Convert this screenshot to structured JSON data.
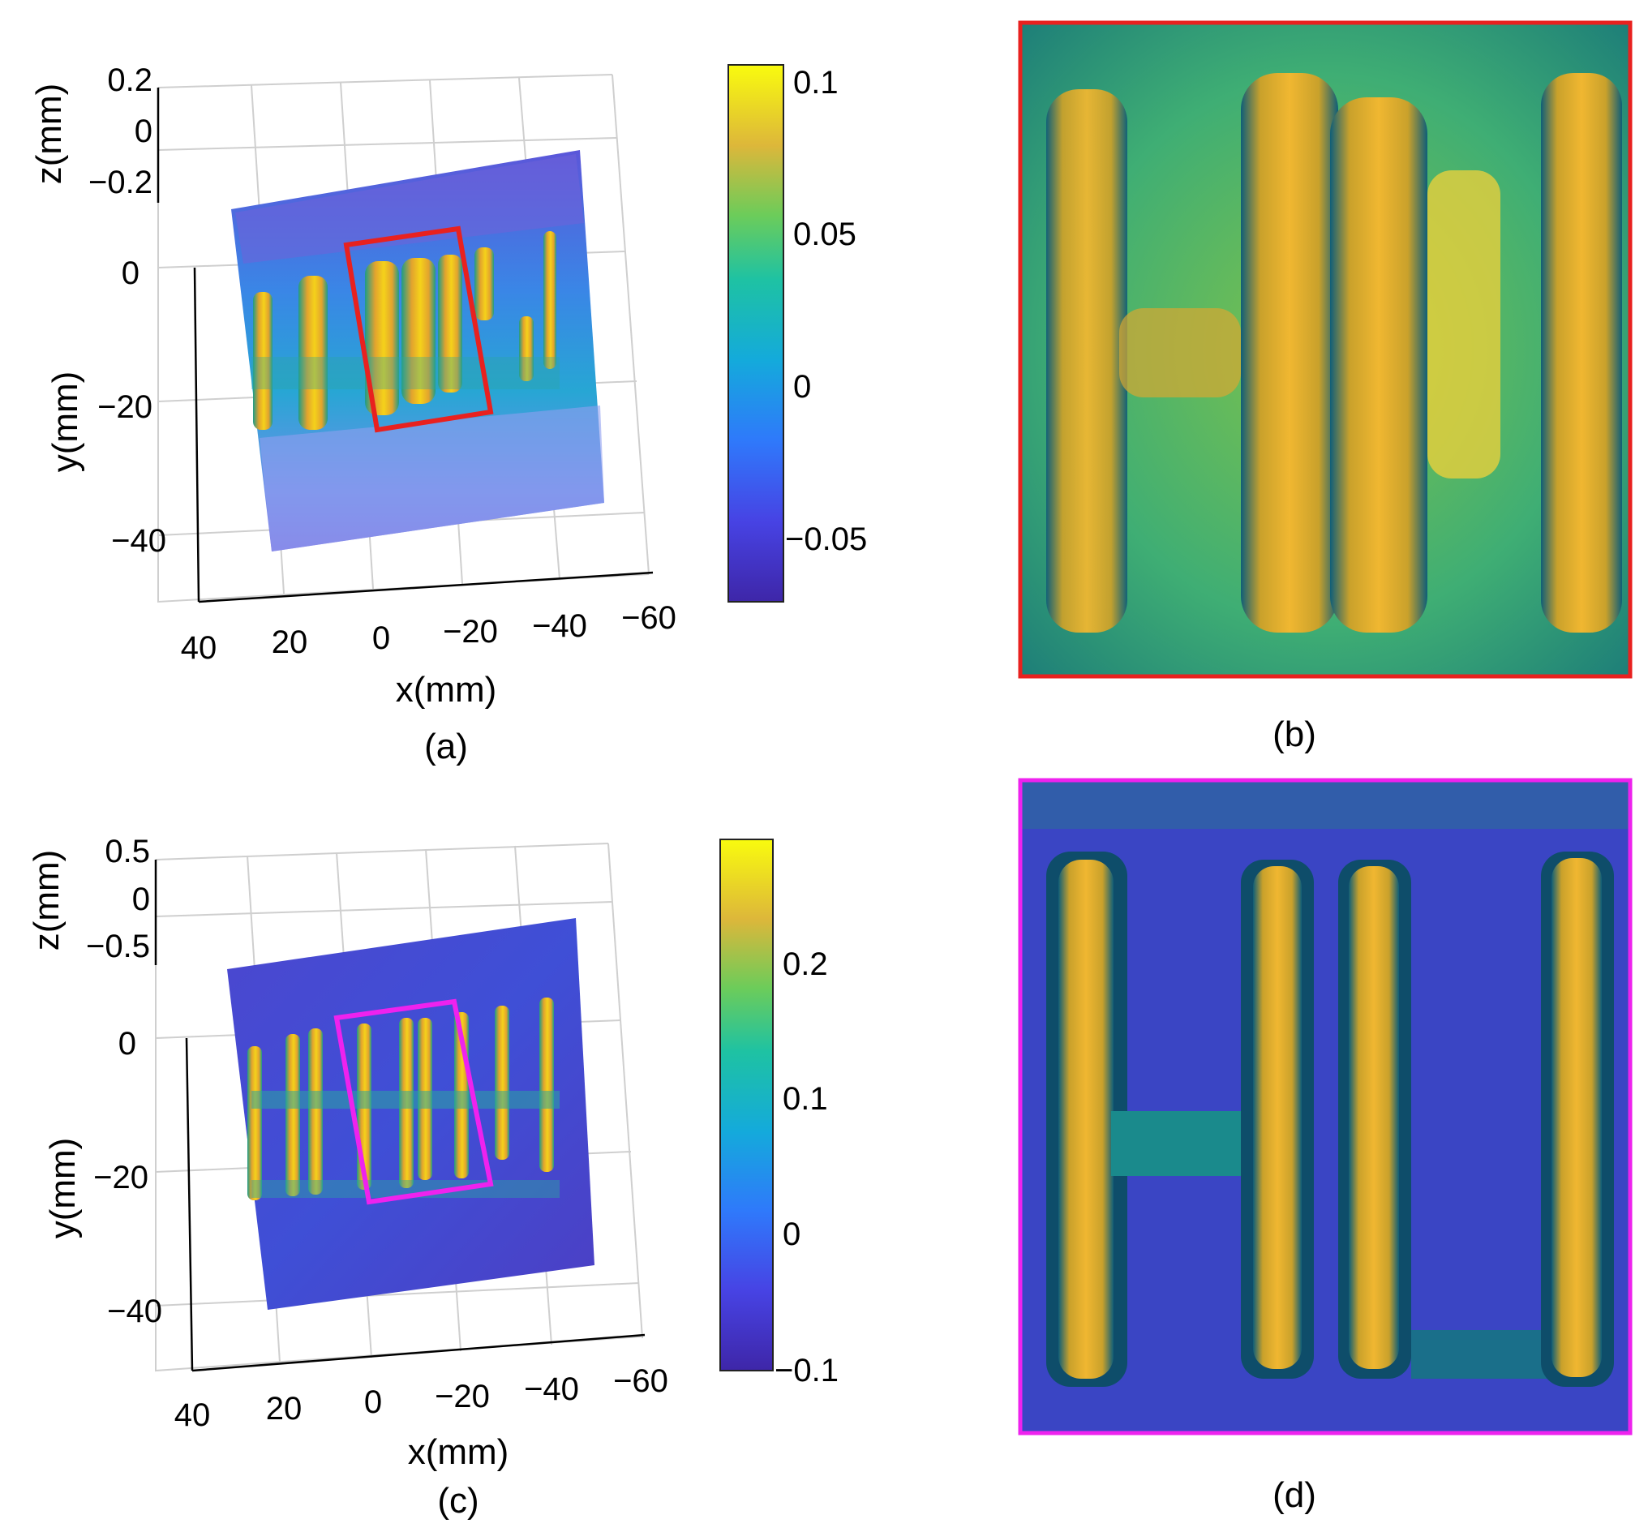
{
  "figure": {
    "panels": [
      {
        "id": "a",
        "caption": "(a)",
        "type": "3d-surface",
        "xlabel": "x(mm)",
        "ylabel": "y(mm)",
        "zlabel": "z(mm)",
        "x_ticks": [
          "40",
          "20",
          "0",
          "−20",
          "−40",
          "−60"
        ],
        "y_ticks": [
          "0",
          "−20",
          "−40"
        ],
        "z_ticks": [
          "0.2",
          "0",
          "−0.2"
        ],
        "colorbar_ticks": [
          "0.1",
          "0.05",
          "0",
          "−0.05"
        ],
        "colorbar_range": [
          -0.07,
          0.105
        ],
        "roi_color": "#e8211f",
        "palette": "parula"
      },
      {
        "id": "b",
        "caption": "(b)",
        "type": "zoomed-surface",
        "border_color": "#e8211f",
        "palette": "parula"
      },
      {
        "id": "c",
        "caption": "(c)",
        "type": "3d-surface",
        "xlabel": "x(mm)",
        "ylabel": "y(mm)",
        "zlabel": "z(mm)",
        "x_ticks": [
          "40",
          "20",
          "0",
          "−20",
          "−40",
          "−60"
        ],
        "y_ticks": [
          "0",
          "−20",
          "−40"
        ],
        "z_ticks": [
          "0.5",
          "0",
          "−0.5"
        ],
        "colorbar_ticks": [
          "0.2",
          "0.1",
          "0",
          "−0.1"
        ],
        "colorbar_range": [
          -0.1,
          0.3
        ],
        "roi_color": "#ee22ee",
        "palette": "parula"
      },
      {
        "id": "d",
        "caption": "(d)",
        "type": "zoomed-surface",
        "border_color": "#ee22ee",
        "palette": "parula"
      }
    ]
  }
}
